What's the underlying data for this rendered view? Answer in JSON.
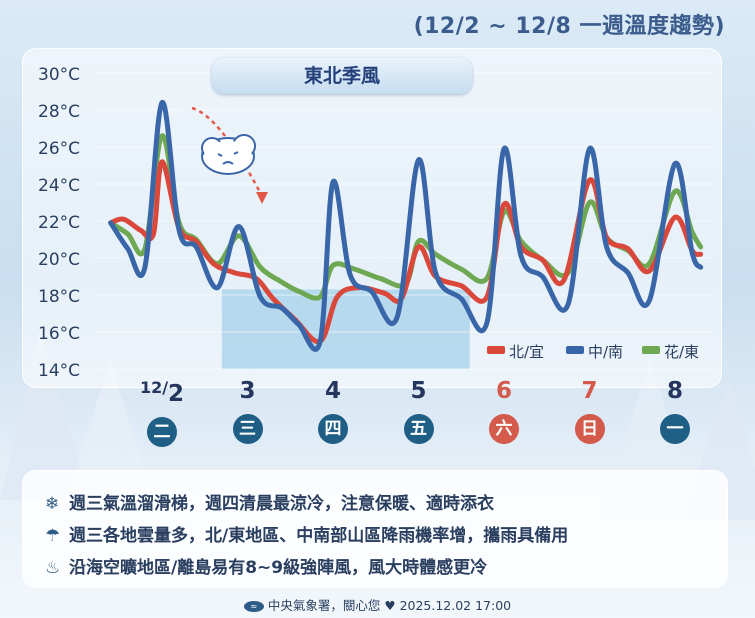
{
  "title": "(12/2 ~ 12/8 一週溫度趨勢)",
  "banner": "東北季風",
  "legend": [
    {
      "label": "北/宜",
      "color": "#d9483b"
    },
    {
      "label": "中/南",
      "color": "#3966a8"
    },
    {
      "label": "花/東",
      "color": "#6ea852"
    }
  ],
  "days": [
    {
      "date": "2",
      "date_prefix": "12/",
      "weekday": "二",
      "weekend": false
    },
    {
      "date": "3",
      "date_prefix": "",
      "weekday": "三",
      "weekend": false
    },
    {
      "date": "4",
      "date_prefix": "",
      "weekday": "四",
      "weekend": false
    },
    {
      "date": "5",
      "date_prefix": "",
      "weekday": "五",
      "weekend": false
    },
    {
      "date": "6",
      "date_prefix": "",
      "weekday": "六",
      "weekend": true
    },
    {
      "date": "7",
      "date_prefix": "",
      "weekday": "日",
      "weekend": true
    },
    {
      "date": "8",
      "date_prefix": "",
      "weekday": "一",
      "weekend": false
    }
  ],
  "notes": [
    {
      "icon": "snowflake-icon",
      "glyph": "❄",
      "text": "週三氣溫溜滑梯，週四清晨最涼冷，注意保暖、適時添衣"
    },
    {
      "icon": "umbrella-icon",
      "glyph": "☂",
      "text": "週三各地雲量多，北/東地區、中南部山區降雨機率增，攜雨具備用"
    },
    {
      "icon": "wind-icon",
      "glyph": "♨",
      "text": "沿海空曠地區/離島易有8~9級強陣風，風大時體感更冷"
    }
  ],
  "footer": {
    "org": "中央氣象署，關心您",
    "heart": "♥",
    "datetime": "2025.12.02 17:00"
  },
  "chart_data": {
    "type": "line",
    "title": "(12/2 ~ 12/8 一週溫度趨勢)",
    "xlabel": "",
    "ylabel": "",
    "y_tick_labels": [
      "14°C",
      "16°C",
      "18°C",
      "20°C",
      "22°C",
      "24°C",
      "26°C",
      "28°C",
      "30°C"
    ],
    "ylim": [
      14,
      30
    ],
    "x_range_days": [
      -0.6,
      6.3
    ],
    "categories": [
      "12/2 二",
      "3 三",
      "4 四",
      "5 五",
      "6 六",
      "7 日",
      "8 一"
    ],
    "legend_position": "bottom-right",
    "cold_period_shading_days": [
      0.7,
      3.6
    ],
    "series": [
      {
        "name": "北/宜",
        "color": "#d9483b",
        "points": [
          [
            -0.6,
            21.9
          ],
          [
            -0.45,
            22.1
          ],
          [
            -0.25,
            21.5
          ],
          [
            -0.1,
            21.3
          ],
          [
            0.0,
            25.2
          ],
          [
            0.2,
            21.6
          ],
          [
            0.4,
            20.9
          ],
          [
            0.6,
            19.7
          ],
          [
            0.85,
            19.2
          ],
          [
            1.1,
            18.9
          ],
          [
            1.3,
            17.8
          ],
          [
            1.55,
            16.7
          ],
          [
            1.85,
            15.5
          ],
          [
            2.05,
            17.9
          ],
          [
            2.3,
            18.4
          ],
          [
            2.6,
            18.1
          ],
          [
            2.8,
            17.8
          ],
          [
            3.0,
            20.6
          ],
          [
            3.2,
            19.0
          ],
          [
            3.5,
            18.5
          ],
          [
            3.8,
            17.9
          ],
          [
            4.0,
            22.9
          ],
          [
            4.2,
            20.6
          ],
          [
            4.45,
            19.9
          ],
          [
            4.7,
            18.8
          ],
          [
            5.0,
            24.2
          ],
          [
            5.2,
            21.1
          ],
          [
            5.45,
            20.5
          ],
          [
            5.7,
            19.3
          ],
          [
            6.0,
            22.2
          ],
          [
            6.2,
            20.4
          ],
          [
            6.3,
            20.2
          ]
        ]
      },
      {
        "name": "中/南",
        "color": "#3966a8",
        "points": [
          [
            -0.6,
            21.9
          ],
          [
            -0.4,
            20.5
          ],
          [
            -0.2,
            19.5
          ],
          [
            0.0,
            28.4
          ],
          [
            0.2,
            21.5
          ],
          [
            0.4,
            20.6
          ],
          [
            0.65,
            18.4
          ],
          [
            0.9,
            21.7
          ],
          [
            1.15,
            17.9
          ],
          [
            1.4,
            17.3
          ],
          [
            1.6,
            16.4
          ],
          [
            1.85,
            15.5
          ],
          [
            2.0,
            24.1
          ],
          [
            2.2,
            19.1
          ],
          [
            2.45,
            18.2
          ],
          [
            2.75,
            16.8
          ],
          [
            3.0,
            25.3
          ],
          [
            3.2,
            19.2
          ],
          [
            3.5,
            17.8
          ],
          [
            3.8,
            16.5
          ],
          [
            4.0,
            25.9
          ],
          [
            4.2,
            20.1
          ],
          [
            4.45,
            19.0
          ],
          [
            4.75,
            17.5
          ],
          [
            5.0,
            25.9
          ],
          [
            5.2,
            20.6
          ],
          [
            5.45,
            19.2
          ],
          [
            5.7,
            17.7
          ],
          [
            6.0,
            25.1
          ],
          [
            6.2,
            20.3
          ],
          [
            6.3,
            19.5
          ]
        ]
      },
      {
        "name": "花/東",
        "color": "#6ea852",
        "points": [
          [
            -0.6,
            21.9
          ],
          [
            -0.4,
            21.3
          ],
          [
            -0.2,
            20.5
          ],
          [
            0.0,
            26.6
          ],
          [
            0.2,
            21.9
          ],
          [
            0.4,
            21.0
          ],
          [
            0.65,
            19.7
          ],
          [
            0.9,
            21.2
          ],
          [
            1.15,
            19.5
          ],
          [
            1.4,
            18.7
          ],
          [
            1.6,
            18.2
          ],
          [
            1.85,
            17.9
          ],
          [
            2.0,
            19.6
          ],
          [
            2.25,
            19.4
          ],
          [
            2.55,
            18.9
          ],
          [
            2.85,
            18.6
          ],
          [
            3.0,
            20.9
          ],
          [
            3.2,
            20.2
          ],
          [
            3.5,
            19.4
          ],
          [
            3.8,
            18.9
          ],
          [
            4.0,
            22.5
          ],
          [
            4.2,
            20.9
          ],
          [
            4.45,
            19.9
          ],
          [
            4.75,
            19.2
          ],
          [
            5.0,
            23.0
          ],
          [
            5.2,
            21.1
          ],
          [
            5.45,
            20.4
          ],
          [
            5.7,
            19.7
          ],
          [
            6.0,
            23.6
          ],
          [
            6.2,
            21.4
          ],
          [
            6.3,
            20.6
          ]
        ]
      }
    ]
  }
}
